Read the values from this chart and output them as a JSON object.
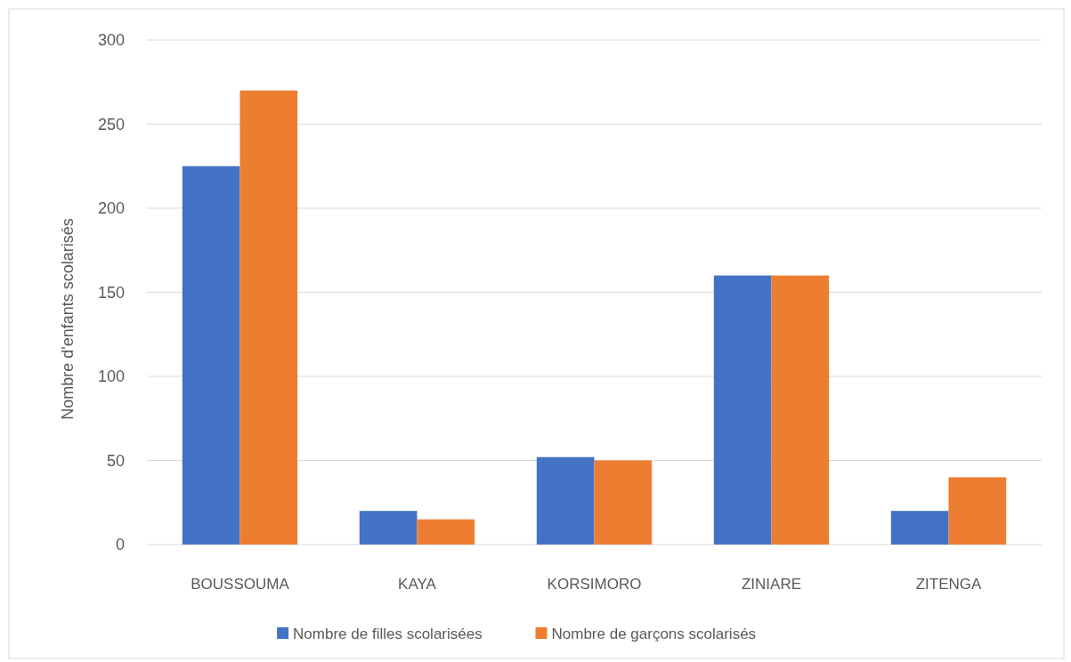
{
  "chart_data": {
    "type": "bar",
    "ylabel": "Nombre d'enfants scolarisés",
    "categories": [
      "BOUSSOUMA",
      "KAYA",
      "KORSIMORO",
      "ZINIARE",
      "ZITENGA"
    ],
    "series": [
      {
        "name": "Nombre de filles scolarisées",
        "color": "#4472c4",
        "values": [
          225,
          20,
          52,
          160,
          20
        ]
      },
      {
        "name": "Nombre de garçons scolarisés",
        "color": "#ed7d31",
        "values": [
          270,
          15,
          50,
          160,
          40
        ]
      }
    ],
    "ylim": [
      0,
      300
    ],
    "yticks": [
      0,
      50,
      100,
      150,
      200,
      250,
      300
    ],
    "grid": "y",
    "legend": "bottom"
  }
}
